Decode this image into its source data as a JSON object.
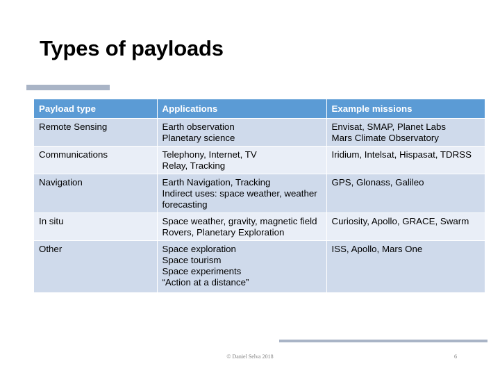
{
  "slide": {
    "title": "Types of payloads",
    "footer": "© Daniel Selva 2018",
    "page_number": "6"
  },
  "table": {
    "headers": [
      "Payload type",
      "Applications",
      "Example missions"
    ],
    "rows": [
      {
        "type": "Remote Sensing",
        "applications": [
          "Earth observation",
          "Planetary science"
        ],
        "missions": [
          "Envisat, SMAP, Planet Labs",
          "Mars Climate Observatory"
        ]
      },
      {
        "type": "Communications",
        "applications": [
          "Telephony, Internet, TV",
          "Relay, Tracking"
        ],
        "missions": [
          "Iridium, Intelsat, Hispasat, TDRSS"
        ]
      },
      {
        "type": "Navigation",
        "applications": [
          "Earth Navigation, Tracking",
          "Indirect uses: space weather, weather forecasting"
        ],
        "missions": [
          "GPS, Glonass, Galileo"
        ]
      },
      {
        "type": "In situ",
        "applications": [
          "Space weather, gravity, magnetic field",
          "Rovers, Planetary Exploration"
        ],
        "missions": [
          "Curiosity, Apollo, GRACE, Swarm"
        ]
      },
      {
        "type": "Other",
        "applications": [
          "Space exploration",
          "Space tourism",
          "Space experiments",
          "“Action at a distance”"
        ],
        "missions": [
          "ISS, Apollo, Mars One"
        ]
      }
    ]
  }
}
